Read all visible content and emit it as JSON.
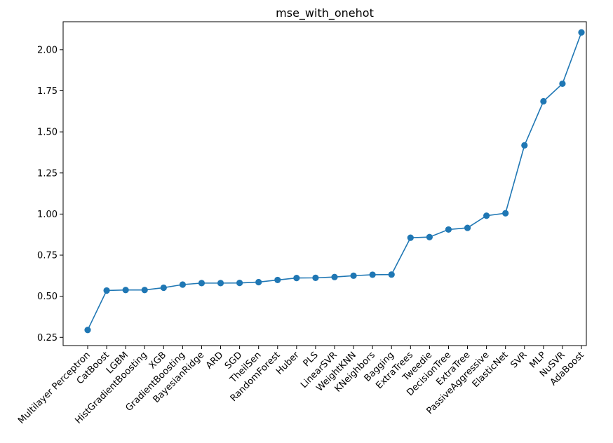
{
  "chart_data": {
    "type": "line",
    "title": "mse_with_onehot",
    "xlabel": "",
    "ylabel": "",
    "categories": [
      "Multilayer Perceptron",
      "CatBoost",
      "LGBM",
      "HistGradientBoosting",
      "XGB",
      "GradientBoosting",
      "BayesianRidge",
      "ARD",
      "SGD",
      "TheilSen",
      "RandomForest",
      "Huber",
      "PLS",
      "LinearSVR",
      "WeightKNN",
      "KNeighbors",
      "Bagging",
      "ExtraTrees",
      "Tweedie",
      "DecisionTree",
      "ExtraTree",
      "PassiveAggressive",
      "ElasticNet",
      "SVR",
      "MLP",
      "NuSVR",
      "AdaBoost"
    ],
    "series": [
      {
        "values": [
          0.295,
          0.535,
          0.538,
          0.538,
          0.552,
          0.571,
          0.58,
          0.58,
          0.581,
          0.586,
          0.599,
          0.611,
          0.612,
          0.617,
          0.625,
          0.631,
          0.632,
          0.856,
          0.86,
          0.906,
          0.916,
          0.99,
          1.005,
          1.418,
          1.686,
          1.793,
          2.105
        ]
      }
    ],
    "ylim": [
      0.2,
      2.17
    ],
    "yticks": [
      "0.25",
      "0.50",
      "0.75",
      "1.00",
      "1.25",
      "1.50",
      "1.75",
      "2.00"
    ],
    "grid": false,
    "color": "#1f77b4"
  }
}
